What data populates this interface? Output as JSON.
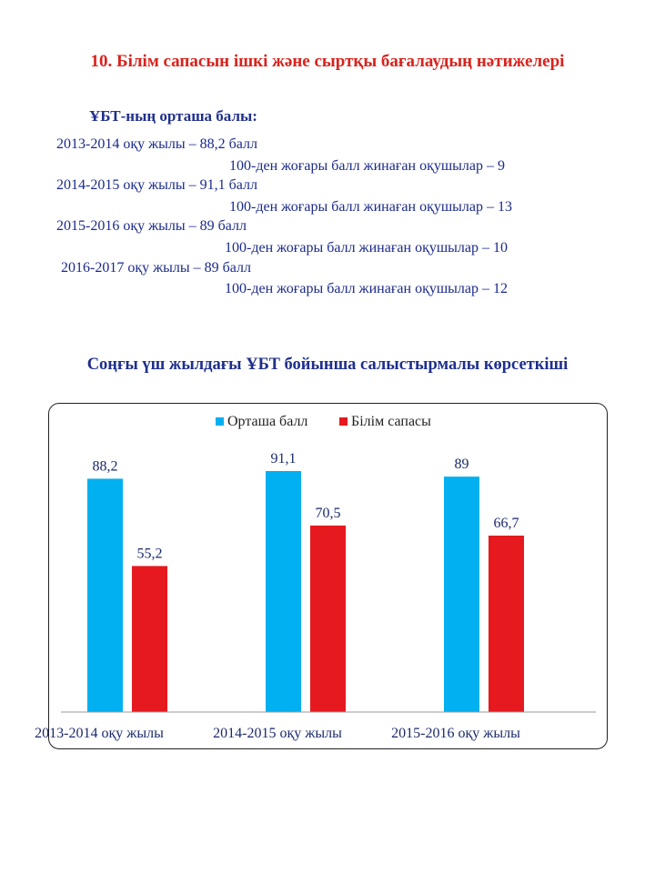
{
  "heading": "10. Білім сапасын ішкі және сыртқы бағалаудың нәтижелері",
  "subheading": "ҰБТ-ның орташа балы:",
  "lines": [
    {
      "text": "2013-2014  оқу жылы – 88,2 балл"
    },
    {
      "text": "100-ден жоғары балл жинаған оқушылар – 9"
    },
    {
      "text": "2014-2015  оқу жылы – 91,1 балл"
    },
    {
      "text": "100-ден жоғары балл жинаған оқушылар – 13"
    },
    {
      "text": "2015-2016  оқу жылы – 89 балл"
    },
    {
      "text": "100-ден жоғары балл жинаған оқушылар – 10"
    },
    {
      "text": "2016-2017  оқу жылы – 89 балл"
    },
    {
      "text": "100-ден жоғары балл жинаған оқушылар – 12"
    }
  ],
  "section_title": "Соңғы үш жылдағы ҰБТ бойынша салыстырмалы  көрсеткіші",
  "chart_data": {
    "type": "bar",
    "categories": [
      "2013-2014  оқу жылы",
      "2014-2015  оқу жылы",
      "2015-2016  оқу жылы"
    ],
    "series": [
      {
        "name": "Орташа балл",
        "values": [
          88.2,
          91.1,
          89
        ],
        "labels": [
          "88,2",
          "91,1",
          "89"
        ],
        "color": "#00b0f0"
      },
      {
        "name": "Білім  сапасы",
        "values": [
          55.2,
          70.5,
          66.7
        ],
        "labels": [
          "55,2",
          "70,5",
          "66,7"
        ],
        "color": "#e5191e"
      }
    ],
    "ylim": [
      0,
      100
    ],
    "legend": "top",
    "grid": false
  }
}
